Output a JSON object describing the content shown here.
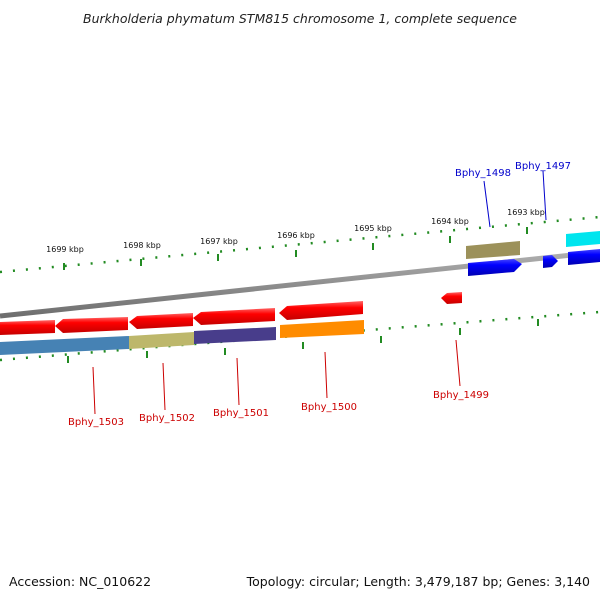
{
  "title": "Burkholderia phymatum STM815 chromosome 1, complete sequence",
  "footer": {
    "accession": "Accession: NC_010622",
    "summary": "Topology: circular; Length: 3,479,187 bp; Genes: 3,140"
  },
  "scale_labels": [
    "1699 kbp",
    "1698 kbp",
    "1697 kbp",
    "1696 kbp",
    "1695 kbp",
    "1694 kbp",
    "1693 kbp"
  ],
  "genes": [
    {
      "name": "Bphy_1503",
      "strand": "-",
      "color": "#cc0000"
    },
    {
      "name": "Bphy_1502",
      "strand": "-",
      "color": "#cc0000"
    },
    {
      "name": "Bphy_1501",
      "strand": "-",
      "color": "#cc0000"
    },
    {
      "name": "Bphy_1500",
      "strand": "-",
      "color": "#cc0000"
    },
    {
      "name": "Bphy_1499",
      "strand": "-",
      "color": "#cc0000"
    },
    {
      "name": "Bphy_1498",
      "strand": "+",
      "color": "#0000cc"
    },
    {
      "name": "Bphy_1497",
      "strand": "+",
      "color": "#0000cc"
    }
  ],
  "colors": {
    "forward_gene": "#0000ee",
    "reverse_gene": "#ee0000",
    "backbone": "#888888",
    "ticks": "#228b22",
    "cog_blue": "#4682b4",
    "cog_khaki": "#bdb76b",
    "cog_purple": "#483d8b",
    "cog_orange": "#ff8c00",
    "cog_olive": "#9c915a",
    "cog_cyan": "#00e5ee"
  }
}
